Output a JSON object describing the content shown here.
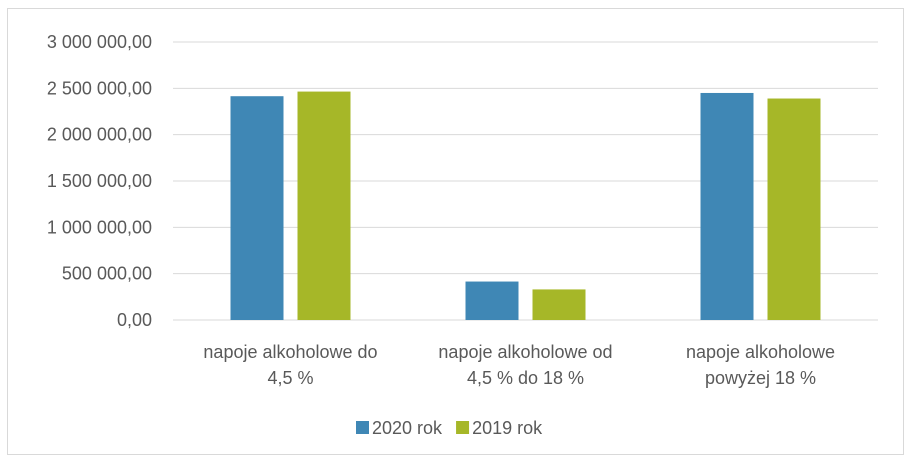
{
  "chart_data": {
    "type": "bar",
    "categories": [
      [
        "napoje alkoholowe do",
        "4,5 %"
      ],
      [
        "napoje alkoholowe od",
        "4,5 % do 18 %"
      ],
      [
        "napoje alkoholowe",
        "powyżej 18 %"
      ]
    ],
    "series": [
      {
        "name": "2020 rok",
        "color": "#3f87b5",
        "values": [
          2415000,
          415000,
          2450000
        ]
      },
      {
        "name": "2019 rok",
        "color": "#a6b728",
        "values": [
          2465000,
          330000,
          2390000
        ]
      }
    ],
    "ylim": [
      0,
      3000000
    ],
    "yticks": [
      0,
      500000,
      1000000,
      1500000,
      2000000,
      2500000,
      3000000
    ],
    "ytick_labels": [
      "0,00",
      "500 000,00",
      "1 000 000,00",
      "1 500 000,00",
      "2 000 000,00",
      "2 500 000,00",
      "3 000 000,00"
    ],
    "grid": true,
    "legend": "bottom",
    "title": "",
    "xlabel": "",
    "ylabel": ""
  }
}
